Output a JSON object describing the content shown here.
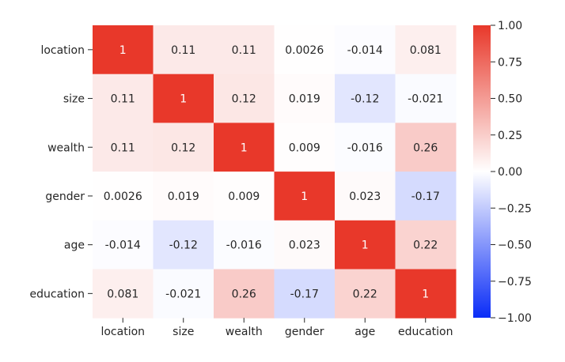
{
  "chart_data": {
    "type": "heatmap",
    "title": "",
    "xlabel": "",
    "ylabel": "",
    "x_labels": [
      "location",
      "size",
      "wealth",
      "gender",
      "age",
      "education"
    ],
    "y_labels": [
      "location",
      "size",
      "wealth",
      "gender",
      "age",
      "education"
    ],
    "values": [
      [
        1,
        0.11,
        0.11,
        0.0026,
        -0.014,
        0.081
      ],
      [
        0.11,
        1,
        0.12,
        0.019,
        -0.12,
        -0.021
      ],
      [
        0.11,
        0.12,
        1,
        0.009,
        -0.016,
        0.26
      ],
      [
        0.0026,
        0.019,
        0.009,
        1,
        0.023,
        -0.17
      ],
      [
        -0.014,
        -0.12,
        -0.016,
        0.023,
        1,
        0.22
      ],
      [
        0.081,
        -0.021,
        0.26,
        -0.17,
        0.22,
        1
      ]
    ],
    "annotations": [
      [
        "1",
        "0.11",
        "0.11",
        "0.0026",
        "-0.014",
        "0.081"
      ],
      [
        "0.11",
        "1",
        "0.12",
        "0.019",
        "-0.12",
        "-0.021"
      ],
      [
        "0.11",
        "0.12",
        "1",
        "0.009",
        "-0.016",
        "0.26"
      ],
      [
        "0.0026",
        "0.019",
        "0.009",
        "1",
        "0.023",
        "-0.17"
      ],
      [
        "-0.014",
        "-0.12",
        "-0.016",
        "0.023",
        "1",
        "0.22"
      ],
      [
        "0.081",
        "-0.021",
        "0.26",
        "-0.17",
        "0.22",
        "1"
      ]
    ],
    "color_range": [
      -1,
      1
    ],
    "colors": {
      "low": "#0a2cf7",
      "mid": "#ffffff",
      "high": "#e8382a"
    },
    "colorbar": {
      "ticks": [
        1.0,
        0.75,
        0.5,
        0.25,
        0.0,
        -0.25,
        -0.5,
        -0.75,
        -1.0
      ],
      "tick_labels": [
        "1.00",
        "0.75",
        "0.50",
        "0.25",
        "0.00",
        "−0.25",
        "−0.50",
        "−0.75",
        "−1.00"
      ]
    }
  }
}
